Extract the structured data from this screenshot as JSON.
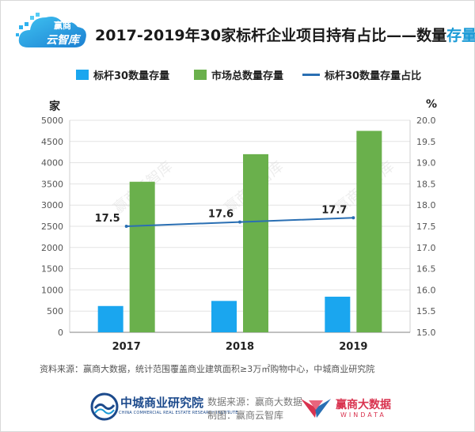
{
  "brand": {
    "logo_line1": "赢商",
    "logo_line2": "云智库"
  },
  "title": {
    "main": "2017-2019年30家标杆企业项目持有占比——数量",
    "highlight": "存量"
  },
  "legend": {
    "bar1": "标杆30数量存量",
    "bar2": "市场总数量存量",
    "line": "标杆30数量存量占比"
  },
  "units": {
    "left": "家",
    "right": "%"
  },
  "colors": {
    "bar1": "#1aa6ef",
    "bar2": "#6ab04c",
    "line": "#2a6fb3",
    "accent": "#1a9ad6",
    "grid": "#e3e3e3"
  },
  "chart_data": {
    "type": "bar",
    "categories": [
      "2017",
      "2018",
      "2019"
    ],
    "series": [
      {
        "name": "标杆30数量存量",
        "type": "bar",
        "axis": "left",
        "values": [
          620,
          740,
          840
        ]
      },
      {
        "name": "市场总数量存量",
        "type": "bar",
        "axis": "left",
        "values": [
          3550,
          4200,
          4750
        ]
      },
      {
        "name": "标杆30数量存量占比",
        "type": "line",
        "axis": "right",
        "values": [
          17.5,
          17.6,
          17.7
        ]
      }
    ],
    "line_labels": [
      "17.5",
      "17.6",
      "17.7"
    ],
    "ylabel": "家",
    "y2label": "%",
    "ylim": [
      0,
      5000
    ],
    "y2lim": [
      15.0,
      20.0
    ],
    "yticks": [
      "0",
      "500",
      "1000",
      "1500",
      "2000",
      "2500",
      "3000",
      "3500",
      "4000",
      "4500",
      "5000"
    ],
    "y2ticks": [
      "15.0",
      "15.5",
      "16.0",
      "16.5",
      "17.0",
      "17.5",
      "18.0",
      "18.5",
      "19.0",
      "19.5",
      "20.0"
    ],
    "grid": true,
    "legend": "top"
  },
  "source_note": "资料来源：赢商大数据，统计范围覆盖商业建筑面积≥3万㎡购物中心，中城商业研究院",
  "footer": {
    "institute_name": "中城商业研究院",
    "institute_en": "CHINA COMMERCIAL REAL ESTATE RESEARCH INSTITUTE",
    "data_source": "数据来源：赢商大数据",
    "made_by": "制图：赢商云智库",
    "winshang_cn": "赢商大数据",
    "winshang_en": "WINDATA"
  }
}
